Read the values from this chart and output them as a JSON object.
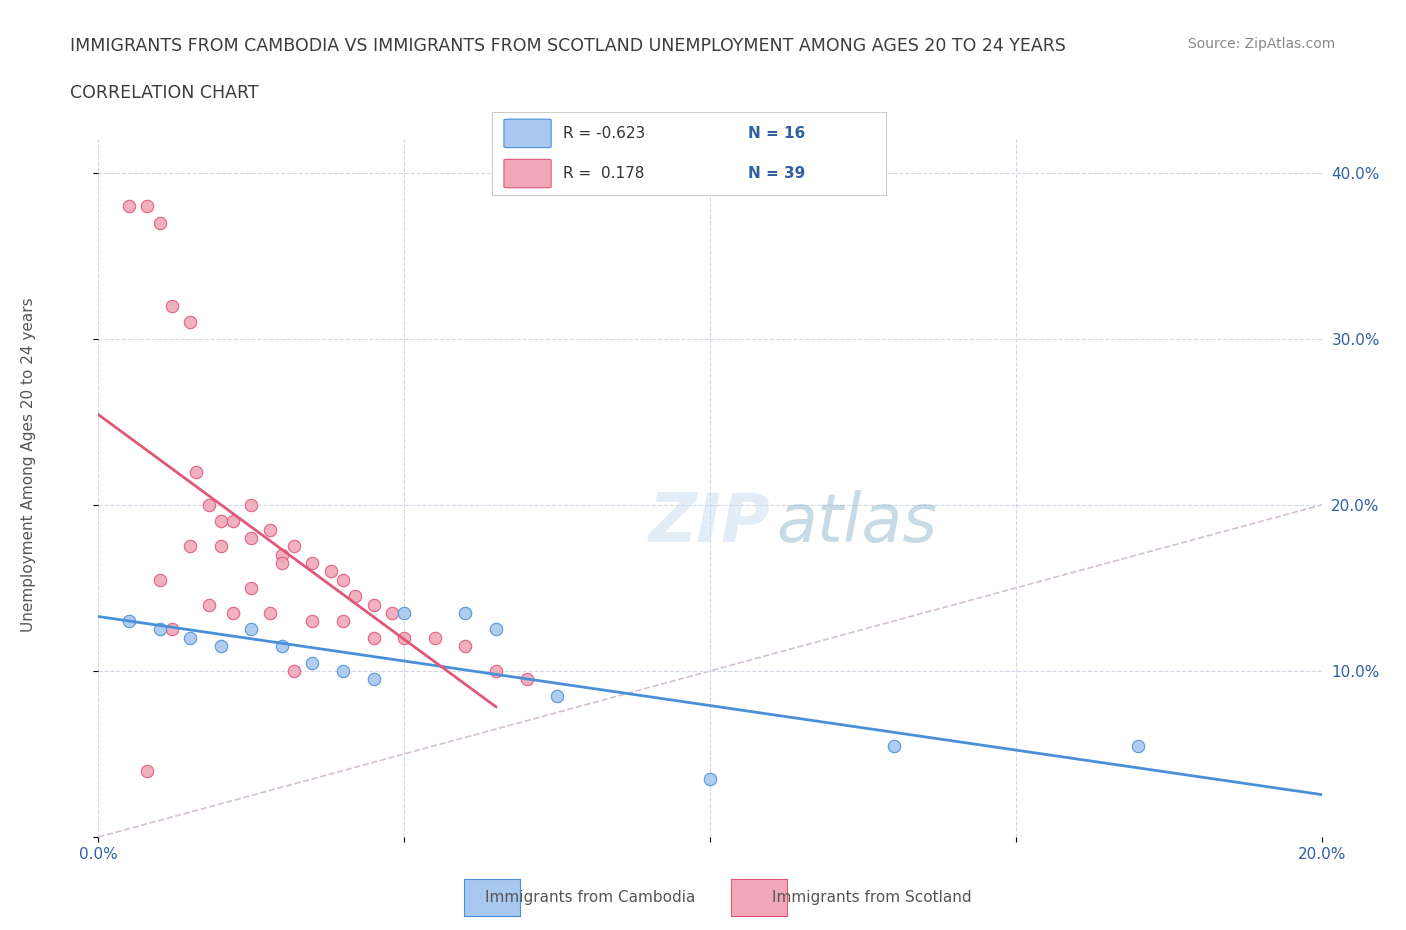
{
  "title_line1": "IMMIGRANTS FROM CAMBODIA VS IMMIGRANTS FROM SCOTLAND UNEMPLOYMENT AMONG AGES 20 TO 24 YEARS",
  "title_line2": "CORRELATION CHART",
  "source": "Source: ZipAtlas.com",
  "xlabel": "",
  "ylabel": "Unemployment Among Ages 20 to 24 years",
  "xlim": [
    0.0,
    0.2
  ],
  "ylim": [
    0.0,
    0.42
  ],
  "xticks": [
    0.0,
    0.05,
    0.1,
    0.15,
    0.2
  ],
  "xtick_labels": [
    "0.0%",
    "",
    "",
    "",
    "20.0%"
  ],
  "ytick_labels_right": [
    "",
    "10.0%",
    "20.0%",
    "30.0%",
    "40.0%"
  ],
  "yticks": [
    0.0,
    0.1,
    0.2,
    0.3,
    0.4
  ],
  "title_color": "#3c3c3c",
  "watermark": "ZIPatlas",
  "legend_R1": "R = -0.623",
  "legend_N1": "N = 16",
  "legend_R2": "R =  0.178",
  "legend_N2": "N = 39",
  "cambodia_color": "#a8c8f0",
  "scotland_color": "#f0a8b8",
  "cambodia_line_color": "#4a90d9",
  "scotland_line_color": "#e05878",
  "diagonal_color": "#c8b0c8",
  "cambodia_scatter_x": [
    0.005,
    0.01,
    0.015,
    0.02,
    0.025,
    0.03,
    0.035,
    0.04,
    0.045,
    0.05,
    0.06,
    0.065,
    0.075,
    0.1,
    0.13,
    0.17
  ],
  "cambodia_scatter_y": [
    0.13,
    0.125,
    0.12,
    0.115,
    0.125,
    0.115,
    0.105,
    0.1,
    0.095,
    0.135,
    0.135,
    0.125,
    0.085,
    0.035,
    0.055,
    0.055
  ],
  "scotland_scatter_x": [
    0.005,
    0.008,
    0.01,
    0.012,
    0.015,
    0.016,
    0.018,
    0.02,
    0.022,
    0.025,
    0.028,
    0.03,
    0.032,
    0.035,
    0.038,
    0.04,
    0.042,
    0.045,
    0.048,
    0.05,
    0.055,
    0.06,
    0.065,
    0.07,
    0.025,
    0.015,
    0.02,
    0.03,
    0.01,
    0.025,
    0.018,
    0.022,
    0.028,
    0.035,
    0.04,
    0.012,
    0.045,
    0.032,
    0.008
  ],
  "scotland_scatter_y": [
    0.38,
    0.38,
    0.37,
    0.32,
    0.31,
    0.22,
    0.2,
    0.19,
    0.19,
    0.18,
    0.185,
    0.17,
    0.175,
    0.165,
    0.16,
    0.155,
    0.145,
    0.14,
    0.135,
    0.12,
    0.12,
    0.115,
    0.1,
    0.095,
    0.2,
    0.175,
    0.175,
    0.165,
    0.155,
    0.15,
    0.14,
    0.135,
    0.135,
    0.13,
    0.13,
    0.125,
    0.12,
    0.1,
    0.04
  ],
  "background_color": "#ffffff",
  "grid_color": "#d0d8e8",
  "axis_color": "#3060a0"
}
